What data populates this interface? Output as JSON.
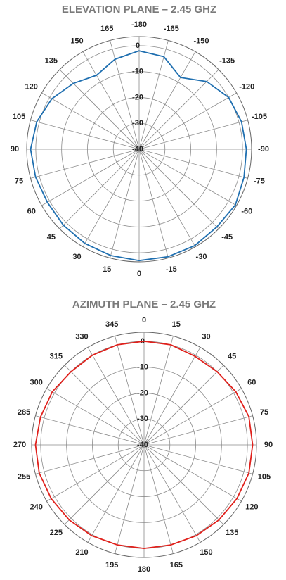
{
  "chart_data": [
    {
      "type": "polar",
      "title": "ELEVATION PLANE – 2.45 GHZ",
      "color": "#1f6fb0",
      "theta_direction": "clockwise",
      "thetalim": [
        -180,
        180
      ],
      "thetaticks": [
        -180,
        -165,
        -150,
        -135,
        -120,
        -105,
        -90,
        -75,
        -60,
        -45,
        -30,
        -15,
        0,
        15,
        30,
        45,
        60,
        75,
        90,
        105,
        120,
        135,
        150,
        165
      ],
      "rlim": [
        -40,
        3.5
      ],
      "rticks": [
        -40,
        -30,
        -20,
        -10,
        0
      ],
      "theta": [
        -180,
        -165,
        -150,
        -135,
        -120,
        -105,
        -90,
        -75,
        -60,
        -45,
        -30,
        -15,
        0,
        15,
        30,
        45,
        60,
        75,
        90,
        105,
        120,
        135,
        150,
        165
      ],
      "values": [
        -2,
        -3,
        -8,
        -3,
        0,
        1,
        1.5,
        2,
        3,
        2.5,
        3,
        3,
        3,
        2.5,
        2,
        1.5,
        1,
        1.5,
        2,
        1,
        -1,
        -4,
        -7,
        -4
      ]
    },
    {
      "type": "polar",
      "title": "AZIMUTH PLANE – 2.45 GHZ",
      "color": "#e0201b",
      "theta_direction": "clockwise",
      "thetalim": [
        0,
        360
      ],
      "thetaticks": [
        0,
        15,
        30,
        45,
        60,
        75,
        90,
        105,
        120,
        135,
        150,
        165,
        180,
        195,
        210,
        225,
        240,
        255,
        270,
        285,
        300,
        315,
        330,
        345
      ],
      "rlim": [
        -40,
        3.5
      ],
      "rticks": [
        -40,
        -30,
        -20,
        -10,
        0
      ],
      "theta": [
        0,
        15,
        30,
        45,
        60,
        75,
        90,
        105,
        120,
        135,
        150,
        165,
        180,
        195,
        210,
        225,
        240,
        255,
        270,
        285,
        300,
        315,
        330,
        345
      ],
      "values": [
        0,
        0,
        -0.5,
        0,
        1,
        2,
        2,
        2,
        1.5,
        1,
        0.5,
        0,
        0,
        0,
        0.5,
        1,
        1.5,
        2,
        2,
        1.5,
        1,
        0,
        0,
        0
      ]
    }
  ]
}
